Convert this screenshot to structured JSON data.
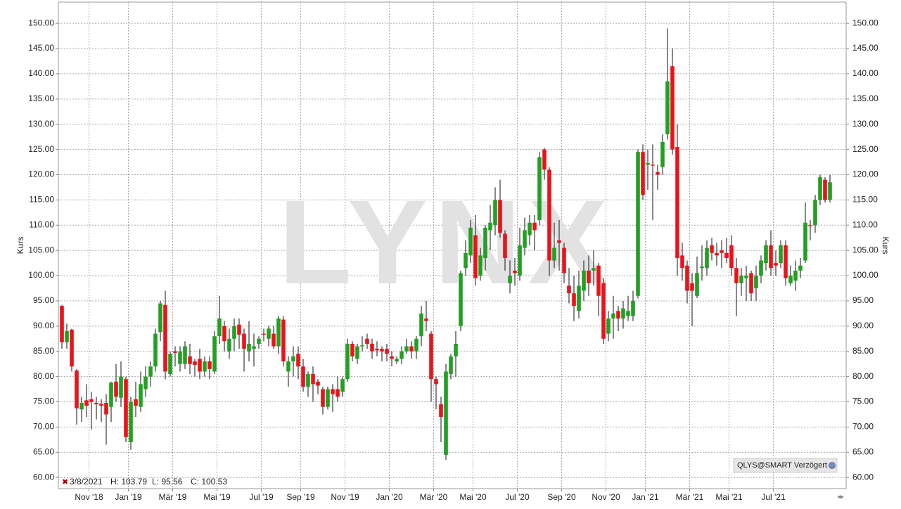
{
  "chart_data": {
    "type": "candlestick",
    "watermark": "LYNX",
    "y_label": "Kurs",
    "y2_label": "Kurs",
    "source_label": "QLYS@SMART Verzögert",
    "info": {
      "date": "3/8/2021",
      "high": "H: 103.79",
      "low": "L: 95.56",
      "close": "C: 100.53"
    },
    "up_color": "#22a022",
    "down_color": "#e8141c",
    "grid": true,
    "ylim": [
      57.8,
      154.2
    ],
    "yticks": [
      {
        "value": 60,
        "label": "60.00"
      },
      {
        "value": 65,
        "label": "65.00"
      },
      {
        "value": 70,
        "label": "70.00"
      },
      {
        "value": 75,
        "label": "75.00"
      },
      {
        "value": 80,
        "label": "80.00"
      },
      {
        "value": 85,
        "label": "85.00"
      },
      {
        "value": 90,
        "label": "90.00"
      },
      {
        "value": 95,
        "label": "95.00"
      },
      {
        "value": 100,
        "label": "100.00"
      },
      {
        "value": 105,
        "label": "105.00"
      },
      {
        "value": 110,
        "label": "110.00"
      },
      {
        "value": 115,
        "label": "115.00"
      },
      {
        "value": 120,
        "label": "120.00"
      },
      {
        "value": 125,
        "label": "125.00"
      },
      {
        "value": 130,
        "label": "130.00"
      },
      {
        "value": 135,
        "label": "135.00"
      },
      {
        "value": 140,
        "label": "140.00"
      },
      {
        "value": 145,
        "label": "145.00"
      },
      {
        "value": 150,
        "label": "150.00"
      }
    ],
    "categories": [
      null,
      null,
      null,
      null,
      null,
      null,
      "Nov '18",
      null,
      null,
      null,
      null,
      null,
      null,
      null,
      "Jan '19",
      null,
      null,
      null,
      null,
      null,
      null,
      null,
      null,
      "Mär '19",
      null,
      null,
      null,
      null,
      null,
      null,
      null,
      null,
      "Mai '19",
      null,
      null,
      null,
      null,
      null,
      null,
      null,
      null,
      "Jul '19",
      null,
      null,
      null,
      null,
      null,
      null,
      null,
      "Sep '19",
      null,
      null,
      null,
      null,
      null,
      null,
      null,
      null,
      "Nov '19",
      null,
      null,
      null,
      null,
      null,
      null,
      null,
      null,
      "Jan '20",
      null,
      null,
      null,
      null,
      null,
      null,
      null,
      null,
      "Mär '20",
      null,
      null,
      null,
      null,
      null,
      null,
      null,
      "Mai '20",
      null,
      null,
      null,
      null,
      null,
      null,
      null,
      null,
      "Jul '20",
      null,
      null,
      null,
      null,
      null,
      null,
      null,
      null,
      "Sep '20",
      null,
      null,
      null,
      null,
      null,
      null,
      null,
      null,
      "Nov '20",
      null,
      null,
      null,
      null,
      null,
      null,
      null,
      "Jan '21",
      null,
      null,
      null,
      null,
      null,
      null,
      null,
      null,
      "Mär '21",
      null,
      null,
      null,
      null,
      null,
      null,
      null,
      "Mai '21",
      null,
      null,
      null,
      null,
      null,
      null,
      null,
      null,
      "Jul '21",
      null,
      null,
      null,
      null,
      null,
      null,
      null,
      null,
      null,
      null
    ],
    "ohlc": [
      [
        94,
        94.2,
        85.5,
        86.8
      ],
      [
        86.8,
        90.5,
        85.5,
        89
      ],
      [
        89.3,
        89.5,
        81,
        82
      ],
      [
        81.2,
        81.5,
        70.5,
        73.7
      ],
      [
        73.5,
        76,
        71,
        74.8
      ],
      [
        75.3,
        78.5,
        72,
        74.2
      ],
      [
        75.5,
        77,
        69.5,
        75
      ],
      [
        74.8,
        76,
        71.5,
        74.5
      ],
      [
        74.6,
        75.5,
        71,
        74.2
      ],
      [
        74.8,
        76.5,
        66.5,
        72.5
      ],
      [
        74,
        79,
        71,
        78.8
      ],
      [
        79,
        82.5,
        75,
        76
      ],
      [
        75.8,
        83,
        74,
        80
      ],
      [
        79.5,
        80,
        67,
        68
      ],
      [
        67,
        76,
        65.5,
        75
      ],
      [
        75.5,
        79,
        72,
        74.2
      ],
      [
        74,
        81,
        73,
        78.5
      ],
      [
        77.5,
        82,
        76,
        80
      ],
      [
        80,
        83,
        78,
        82
      ],
      [
        82,
        89.5,
        81,
        88.5
      ],
      [
        88.8,
        95,
        87,
        94.5
      ],
      [
        94.2,
        97,
        79.5,
        81
      ],
      [
        80.5,
        85,
        80,
        84.5
      ],
      [
        85,
        86,
        82,
        84.7
      ],
      [
        82.5,
        86,
        81,
        85
      ],
      [
        82.5,
        87,
        81.5,
        86
      ],
      [
        84,
        86.5,
        80.5,
        82.5
      ],
      [
        83,
        83.5,
        80,
        82.3
      ],
      [
        83.5,
        85.5,
        79.5,
        81
      ],
      [
        81,
        84,
        80,
        83
      ],
      [
        83,
        84,
        79.5,
        81.5
      ],
      [
        81,
        89,
        80.5,
        88
      ],
      [
        88,
        96,
        86.5,
        91.5
      ],
      [
        90,
        91,
        85,
        87
      ],
      [
        85,
        89.5,
        83.5,
        87.5
      ],
      [
        87.5,
        91.5,
        85,
        90
      ],
      [
        90.3,
        91.5,
        85.5,
        88.3
      ],
      [
        88.5,
        89.5,
        81,
        85.5
      ],
      [
        85,
        91,
        83,
        86.5
      ],
      [
        85.5,
        88.5,
        82,
        86
      ],
      [
        86.5,
        88,
        85.5,
        87.5
      ],
      [
        88.5,
        89.5,
        87,
        88.3
      ],
      [
        87.5,
        90,
        86,
        89.5
      ],
      [
        88.5,
        90,
        85.5,
        86
      ],
      [
        86,
        92,
        84.5,
        91.5
      ],
      [
        91.3,
        92,
        82,
        83
      ],
      [
        81,
        84,
        78,
        83
      ],
      [
        83,
        86,
        80,
        84
      ],
      [
        84.5,
        86,
        79.5,
        82
      ],
      [
        82,
        83.5,
        77,
        78
      ],
      [
        78,
        81,
        76,
        80.5
      ],
      [
        80.5,
        82,
        75,
        78.5
      ],
      [
        79,
        79.5,
        76.5,
        78.2
      ],
      [
        77.5,
        78,
        72.5,
        74
      ],
      [
        74,
        78,
        73.5,
        77.5
      ],
      [
        77.5,
        78.5,
        73,
        76.5
      ],
      [
        77.5,
        80,
        75,
        76
      ],
      [
        77,
        80,
        76,
        79.5
      ],
      [
        79.5,
        87.5,
        79,
        86.5
      ],
      [
        86.5,
        87,
        83,
        84
      ],
      [
        83.5,
        86.5,
        82.5,
        86
      ],
      [
        86,
        88,
        85,
        86.2
      ],
      [
        87.5,
        88.5,
        85.5,
        86.5
      ],
      [
        86.5,
        87.5,
        83.5,
        85
      ],
      [
        85.5,
        87,
        84,
        85.2
      ],
      [
        85.5,
        86,
        83,
        85
      ],
      [
        85.5,
        86.5,
        83,
        84.5
      ],
      [
        84,
        85,
        82,
        83.5
      ],
      [
        83,
        84,
        82.5,
        83.5
      ],
      [
        83.5,
        86,
        82.5,
        85
      ],
      [
        85,
        87.5,
        84.5,
        86
      ],
      [
        86,
        87,
        83.5,
        85
      ],
      [
        85,
        88,
        83.5,
        87.5
      ],
      [
        88,
        94,
        86,
        92.5
      ],
      [
        91.5,
        95,
        89,
        91
      ],
      [
        88.5,
        89,
        75,
        79.5
      ],
      [
        79.5,
        80,
        73.5,
        78.5
      ],
      [
        74.5,
        76,
        67,
        72
      ],
      [
        64.5,
        82.5,
        63.5,
        81
      ],
      [
        80.5,
        84.5,
        79.5,
        84
      ],
      [
        84,
        89,
        80,
        86.5
      ],
      [
        90,
        101,
        89,
        100.5
      ],
      [
        101.5,
        107,
        100,
        104.5
      ],
      [
        104,
        111,
        102.5,
        109.5
      ],
      [
        108,
        112,
        98,
        99.5
      ],
      [
        100,
        105.5,
        99,
        104
      ],
      [
        103.5,
        110,
        101,
        109.5
      ],
      [
        109,
        114,
        105,
        110.5
      ],
      [
        110,
        117.5,
        108,
        115
      ],
      [
        115,
        119,
        107.5,
        108.5
      ],
      [
        108.3,
        109,
        101,
        103.5
      ],
      [
        98.5,
        103,
        96.5,
        100
      ],
      [
        101,
        103.5,
        98,
        100.5
      ],
      [
        100,
        109.5,
        99,
        106
      ],
      [
        105.5,
        111.5,
        104,
        109
      ],
      [
        108,
        112,
        106,
        110.5
      ],
      [
        110.5,
        112,
        105,
        109
      ],
      [
        111,
        124.5,
        110,
        123.5
      ],
      [
        125,
        125.3,
        119,
        121
      ],
      [
        121,
        121.5,
        100,
        103
      ],
      [
        103,
        110.5,
        101.5,
        105.5
      ],
      [
        107,
        111,
        101,
        106.5
      ],
      [
        105.5,
        106.5,
        98.5,
        100.5
      ],
      [
        98,
        101.5,
        94.5,
        96.5
      ],
      [
        96.5,
        100,
        91,
        94
      ],
      [
        93,
        101,
        91.5,
        98
      ],
      [
        97,
        103,
        95,
        101
      ],
      [
        101,
        104,
        96,
        98.5
      ],
      [
        101,
        105,
        98,
        101.5
      ],
      [
        102,
        102.5,
        92,
        96
      ],
      [
        98.5,
        99.5,
        86.5,
        87.5
      ],
      [
        88.5,
        93,
        87,
        91.5
      ],
      [
        91.5,
        96,
        87.5,
        92.5
      ],
      [
        93,
        94,
        89,
        91.5
      ],
      [
        91.5,
        95,
        89.5,
        93.5
      ],
      [
        92,
        96,
        91,
        93
      ],
      [
        92,
        97,
        91,
        95
      ],
      [
        96,
        125,
        95.5,
        124.5
      ],
      [
        124.5,
        126,
        115,
        116
      ],
      [
        122,
        125,
        117,
        122.3
      ],
      [
        122,
        126,
        111,
        121.8
      ],
      [
        120.5,
        122,
        117,
        120
      ],
      [
        121.5,
        128,
        120,
        126.5
      ],
      [
        128,
        149,
        127,
        138.5
      ],
      [
        141.5,
        145,
        124,
        125
      ],
      [
        125.5,
        130,
        100,
        103.5
      ],
      [
        104,
        106.5,
        99,
        101.5
      ],
      [
        102,
        103,
        94.5,
        97
      ],
      [
        98.5,
        100.5,
        90,
        97
      ],
      [
        96,
        103.79,
        95.56,
        100.53
      ],
      [
        101.5,
        106,
        99,
        101.8
      ],
      [
        101.5,
        107,
        100,
        105.5
      ],
      [
        106,
        107.5,
        103,
        104.5
      ],
      [
        104.5,
        106.5,
        102,
        104
      ],
      [
        105,
        107,
        101.5,
        104.5
      ],
      [
        104.5,
        107.5,
        102.5,
        103.5
      ],
      [
        106,
        108,
        100,
        101.5
      ],
      [
        101.5,
        103.5,
        92,
        98.5
      ],
      [
        98.5,
        101.5,
        96,
        100
      ],
      [
        99.5,
        102,
        95,
        100
      ],
      [
        100.5,
        101,
        95,
        96.5
      ],
      [
        97.5,
        102,
        95,
        100
      ],
      [
        100,
        104,
        98.5,
        103
      ],
      [
        102.5,
        107,
        101,
        106
      ],
      [
        106,
        109,
        100,
        101.5
      ],
      [
        102.5,
        105,
        100,
        102
      ],
      [
        102.5,
        107,
        101.5,
        106
      ],
      [
        106,
        107,
        98,
        99.5
      ],
      [
        98.5,
        102,
        98,
        100
      ],
      [
        99,
        103,
        97,
        101
      ],
      [
        101,
        103.5,
        99.5,
        102
      ],
      [
        103,
        114.5,
        102.5,
        110.5
      ],
      [
        110,
        111,
        107,
        109.8
      ],
      [
        110,
        116,
        108.5,
        115
      ],
      [
        115,
        120,
        114,
        119.5
      ],
      [
        119,
        119.5,
        114.5,
        115
      ],
      [
        115,
        120,
        114.5,
        118.5
      ]
    ]
  }
}
